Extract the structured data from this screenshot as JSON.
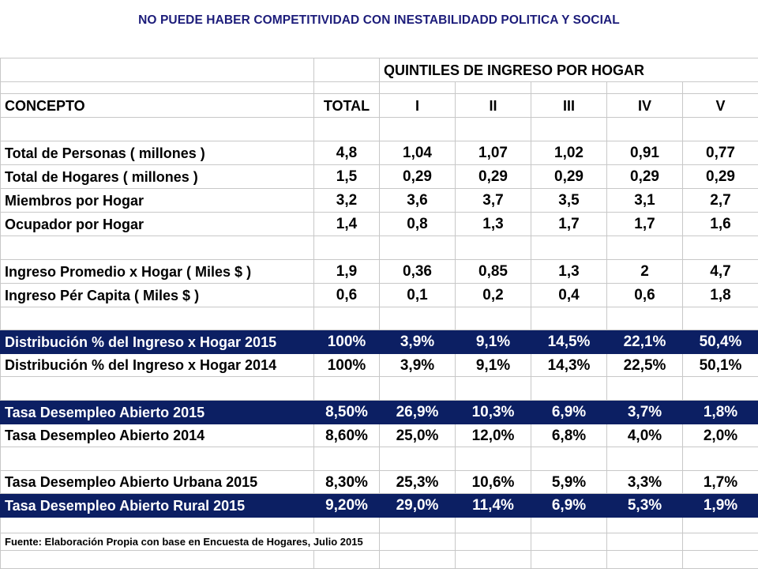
{
  "title": "NO PUEDE HABER COMPETITIVIDAD CON INESTABILIDADD POLITICA Y SOCIAL",
  "table": {
    "group_header": "QUINTILES DE INGRESO POR HOGAR",
    "col_concept": "CONCEPTO",
    "col_total": "TOTAL",
    "quintiles": [
      "I",
      "II",
      "III",
      "IV",
      "V"
    ],
    "rows": [
      {
        "label": "Total de Personas ( millones )",
        "total": "4,8",
        "q": [
          "1,04",
          "1,07",
          "1,02",
          "0,91",
          "0,77"
        ]
      },
      {
        "label": "Total de Hogares ( millones )",
        "total": "1,5",
        "q": [
          "0,29",
          "0,29",
          "0,29",
          "0,29",
          "0,29"
        ]
      },
      {
        "label": "Miembros por Hogar",
        "total": "3,2",
        "q": [
          "3,6",
          "3,7",
          "3,5",
          "3,1",
          "2,7"
        ]
      },
      {
        "label": "Ocupador por Hogar",
        "total": "1,4",
        "q": [
          "0,8",
          "1,3",
          "1,7",
          "1,7",
          "1,6"
        ]
      },
      {
        "label": "Ingreso Promedio x Hogar ( Miles $ )",
        "total": "1,9",
        "q": [
          "0,36",
          "0,85",
          "1,3",
          "2",
          "4,7"
        ]
      },
      {
        "label": "Ingreso Pér Capita ( Miles $ )",
        "total": "0,6",
        "q": [
          "0,1",
          "0,2",
          "0,4",
          "0,6",
          "1,8"
        ]
      },
      {
        "label": "Distribución % del Ingreso x Hogar 2015",
        "total": "100%",
        "q": [
          "3,9%",
          "9,1%",
          "14,5%",
          "22,1%",
          "50,4%"
        ],
        "highlight": true
      },
      {
        "label": "Distribución % del Ingreso x Hogar 2014",
        "total": "100%",
        "q": [
          "3,9%",
          "9,1%",
          "14,3%",
          "22,5%",
          "50,1%"
        ]
      },
      {
        "label": "Tasa Desempleo Abierto 2015",
        "total": "8,50%",
        "q": [
          "26,9%",
          "10,3%",
          "6,9%",
          "3,7%",
          "1,8%"
        ],
        "highlight": true
      },
      {
        "label": "Tasa Desempleo Abierto 2014",
        "total": "8,60%",
        "q": [
          "25,0%",
          "12,0%",
          "6,8%",
          "4,0%",
          "2,0%"
        ]
      },
      {
        "label": "Tasa Desempleo Abierto Urbana 2015",
        "total": "8,30%",
        "q": [
          "25,3%",
          "10,6%",
          "5,9%",
          "3,3%",
          "1,7%"
        ]
      },
      {
        "label": "Tasa Desempleo Abierto Rural 2015",
        "total": "9,20%",
        "q": [
          "29,0%",
          "11,4%",
          "6,9%",
          "5,3%",
          "1,9%"
        ],
        "highlight": true
      }
    ],
    "source": "Fuente: Elaboración Propia con base en Encuesta de Hogares, Julio 2015"
  },
  "colors": {
    "title": "#1c1c7a",
    "highlight_bg": "#0c1f63",
    "highlight_text": "#ffffff",
    "grid": "#c8c8c8"
  }
}
